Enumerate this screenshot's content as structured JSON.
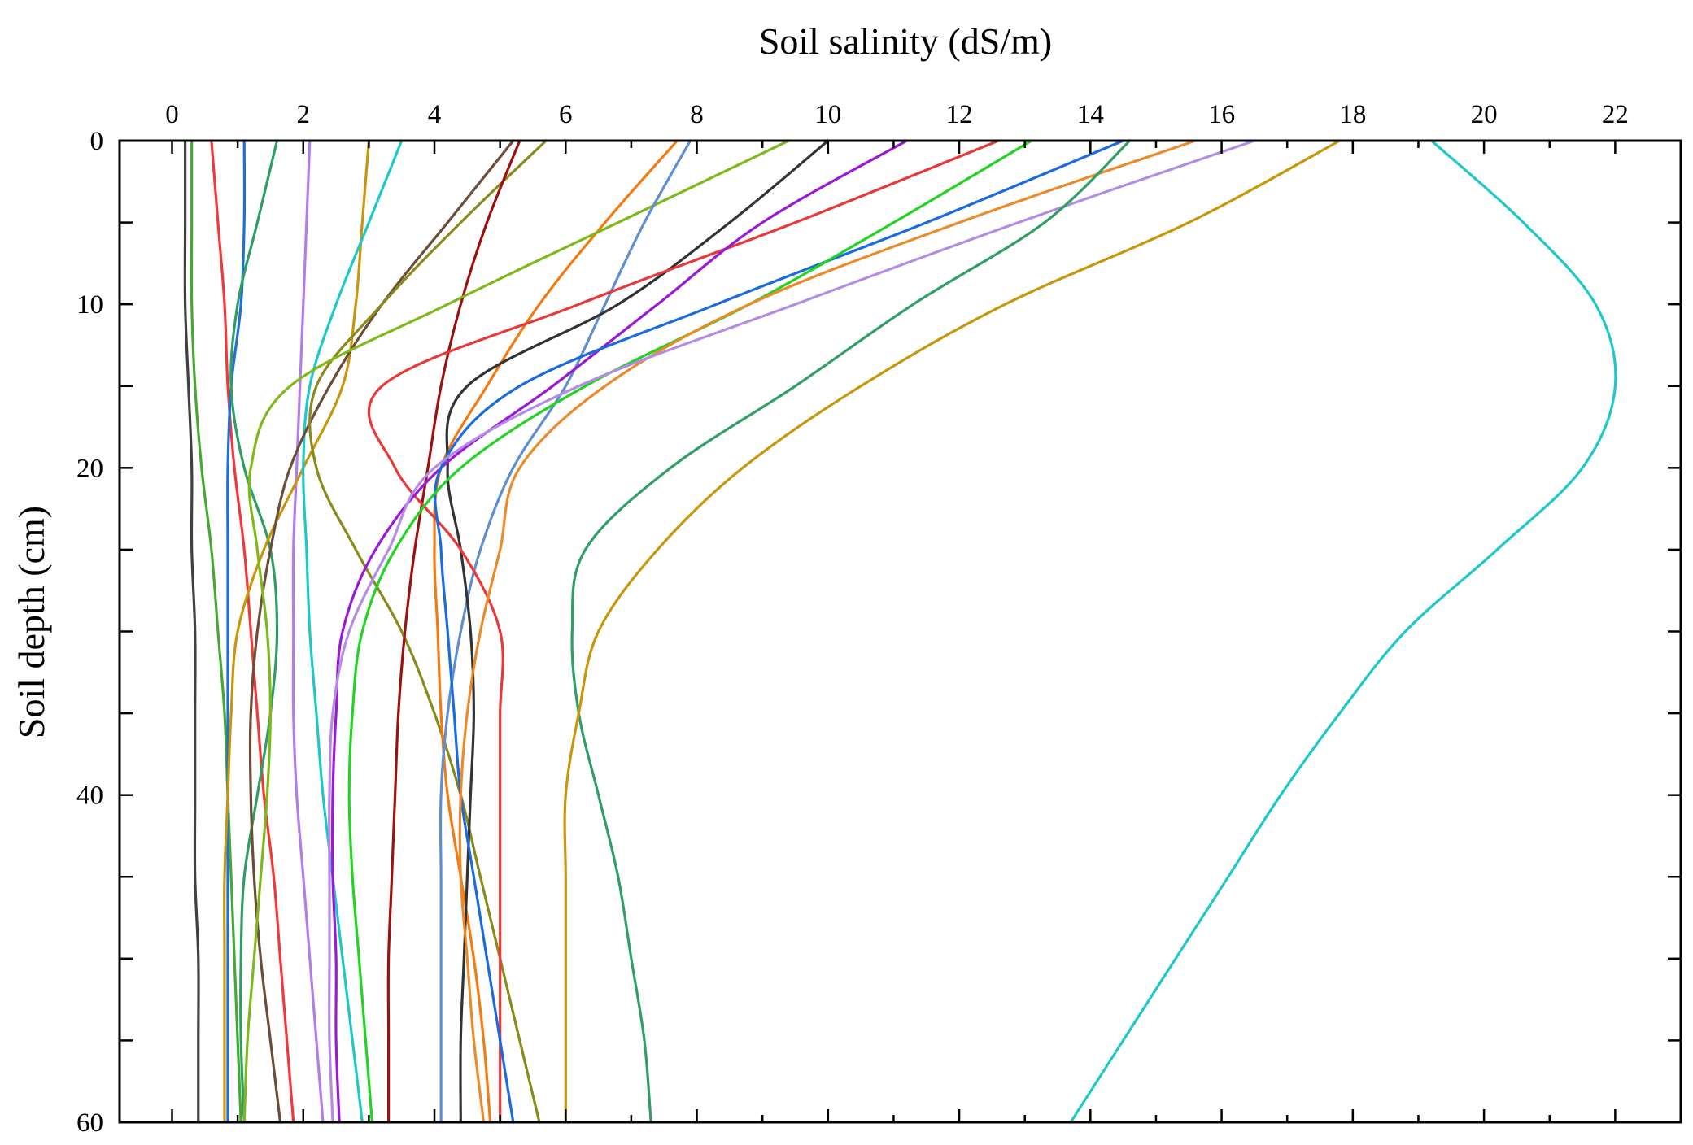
{
  "chart_data": {
    "type": "line",
    "xlabel": "Soil salinity (dS/m)",
    "ylabel": "Soil depth (cm)",
    "x_axis_position": "top",
    "y_axis_reversed": true,
    "xlim": [
      -0.8,
      23
    ],
    "ylim": [
      0,
      60
    ],
    "x_ticks": [
      0,
      2,
      4,
      6,
      8,
      10,
      12,
      14,
      16,
      18,
      20,
      22
    ],
    "y_ticks": [
      0,
      10,
      20,
      40,
      60
    ],
    "y_minor_ticks": [
      5,
      15,
      25,
      30,
      35,
      45,
      50,
      55
    ],
    "grid": false,
    "legend": "none",
    "depth": [
      0,
      5,
      10,
      15,
      20,
      25,
      30,
      35,
      40,
      45,
      50,
      55,
      60
    ],
    "series": [
      {
        "color": "#404040",
        "values": [
          0.2,
          0.2,
          0.2,
          0.25,
          0.3,
          0.3,
          0.35,
          0.35,
          0.35,
          0.35,
          0.4,
          0.4,
          0.4
        ]
      },
      {
        "color": "#44a832",
        "values": [
          0.3,
          0.3,
          0.3,
          0.35,
          0.45,
          0.6,
          0.7,
          0.8,
          0.85,
          0.9,
          0.95,
          1.0,
          1.05
        ]
      },
      {
        "color": "#f03838",
        "values": [
          0.6,
          0.7,
          0.8,
          0.85,
          0.95,
          1.1,
          1.2,
          1.3,
          1.4,
          1.55,
          1.65,
          1.75,
          1.85
        ]
      },
      {
        "color": "#1f6fd6",
        "values": [
          1.1,
          1.1,
          1.05,
          0.9,
          0.85,
          0.85,
          0.85,
          0.85,
          0.85,
          0.85,
          0.85,
          0.85,
          0.85
        ]
      },
      {
        "color": "#2e9e62",
        "values": [
          1.6,
          1.3,
          1.0,
          0.9,
          1.1,
          1.5,
          1.6,
          1.5,
          1.3,
          1.1,
          1.05,
          1.05,
          1.1
        ]
      },
      {
        "color": "#b07ee8",
        "values": [
          2.1,
          2.05,
          2.0,
          1.95,
          1.9,
          1.85,
          1.85,
          1.85,
          1.9,
          2.0,
          2.1,
          2.2,
          2.3
        ]
      },
      {
        "color": "#c8960a",
        "values": [
          3.0,
          2.9,
          2.8,
          2.6,
          2.0,
          1.4,
          1.0,
          0.9,
          0.85,
          0.8,
          0.8,
          0.8,
          0.8
        ]
      },
      {
        "color": "#1fc8c8",
        "values": [
          3.5,
          3.0,
          2.5,
          2.1,
          2.0,
          2.05,
          2.1,
          2.2,
          2.3,
          2.45,
          2.6,
          2.75,
          2.9
        ]
      },
      {
        "color": "#6b4d3a",
        "values": [
          5.2,
          4.2,
          3.2,
          2.4,
          1.8,
          1.5,
          1.3,
          1.2,
          1.2,
          1.25,
          1.35,
          1.5,
          1.65
        ]
      },
      {
        "color": "#8a8a1a",
        "values": [
          5.7,
          4.4,
          3.2,
          2.2,
          2.2,
          2.8,
          3.5,
          4.0,
          4.4,
          4.7,
          5.0,
          5.3,
          5.6
        ]
      },
      {
        "color": "#9c1010",
        "values": [
          5.3,
          4.8,
          4.4,
          4.1,
          3.9,
          3.7,
          3.55,
          3.45,
          3.4,
          3.35,
          3.3,
          3.3,
          3.3
        ]
      },
      {
        "color": "#f47a10",
        "values": [
          7.7,
          6.6,
          5.6,
          4.8,
          4.1,
          4.0,
          4.05,
          4.1,
          4.2,
          4.4,
          4.6,
          4.75,
          4.85
        ]
      },
      {
        "color": "#7fb81a",
        "values": [
          9.4,
          6.8,
          4.2,
          1.8,
          1.2,
          1.3,
          1.45,
          1.5,
          1.45,
          1.35,
          1.25,
          1.15,
          1.1
        ]
      },
      {
        "color": "#5f8fd0",
        "values": [
          7.9,
          7.2,
          6.6,
          6.0,
          5.2,
          4.7,
          4.4,
          4.2,
          4.1,
          4.1,
          4.1,
          4.1,
          4.1
        ]
      },
      {
        "color": "#333333",
        "values": [
          10.0,
          8.5,
          6.8,
          4.5,
          4.2,
          4.4,
          4.55,
          4.6,
          4.55,
          4.5,
          4.45,
          4.4,
          4.4
        ]
      },
      {
        "color": "#e83838",
        "values": [
          12.6,
          9.5,
          6.2,
          3.2,
          3.4,
          4.4,
          5.0,
          5.0,
          5.0,
          5.0,
          5.0,
          5.0,
          5.0
        ]
      },
      {
        "color": "#9b19d6",
        "values": [
          11.2,
          9.0,
          7.4,
          5.8,
          4.1,
          3.1,
          2.6,
          2.5,
          2.45,
          2.45,
          2.5,
          2.5,
          2.55
        ]
      },
      {
        "color": "#1a6be0",
        "values": [
          14.5,
          11.5,
          8.3,
          5.3,
          4.1,
          4.1,
          4.2,
          4.3,
          4.4,
          4.6,
          4.8,
          5.0,
          5.2
        ]
      },
      {
        "color": "#22d422",
        "values": [
          13.1,
          11.0,
          8.8,
          6.3,
          4.4,
          3.4,
          2.9,
          2.75,
          2.7,
          2.75,
          2.85,
          2.95,
          3.05
        ]
      },
      {
        "color": "#ec8a2a",
        "values": [
          15.6,
          12.0,
          8.8,
          6.6,
          5.3,
          5.0,
          4.7,
          4.5,
          4.4,
          4.4,
          4.5,
          4.6,
          4.75
        ]
      },
      {
        "color": "#b48ce6",
        "values": [
          16.5,
          12.9,
          9.5,
          6.2,
          4.0,
          3.3,
          2.7,
          2.45,
          2.4,
          2.4,
          2.4,
          2.4,
          2.45
        ]
      },
      {
        "color": "#2f9f66",
        "values": [
          14.6,
          13.3,
          11.3,
          9.5,
          7.6,
          6.3,
          6.1,
          6.2,
          6.5,
          6.8,
          7.0,
          7.2,
          7.3
        ]
      },
      {
        "color": "#c8960a",
        "values": [
          17.8,
          15.5,
          12.7,
          10.5,
          8.7,
          7.4,
          6.5,
          6.2,
          6.0,
          6.0,
          6.0,
          6.0,
          6.0
        ]
      },
      {
        "color": "#1ec8c8",
        "values": [
          19.2,
          20.6,
          21.7,
          22.0,
          21.5,
          20.2,
          18.8,
          17.8,
          16.9,
          16.1,
          15.3,
          14.5,
          13.7
        ]
      }
    ]
  }
}
